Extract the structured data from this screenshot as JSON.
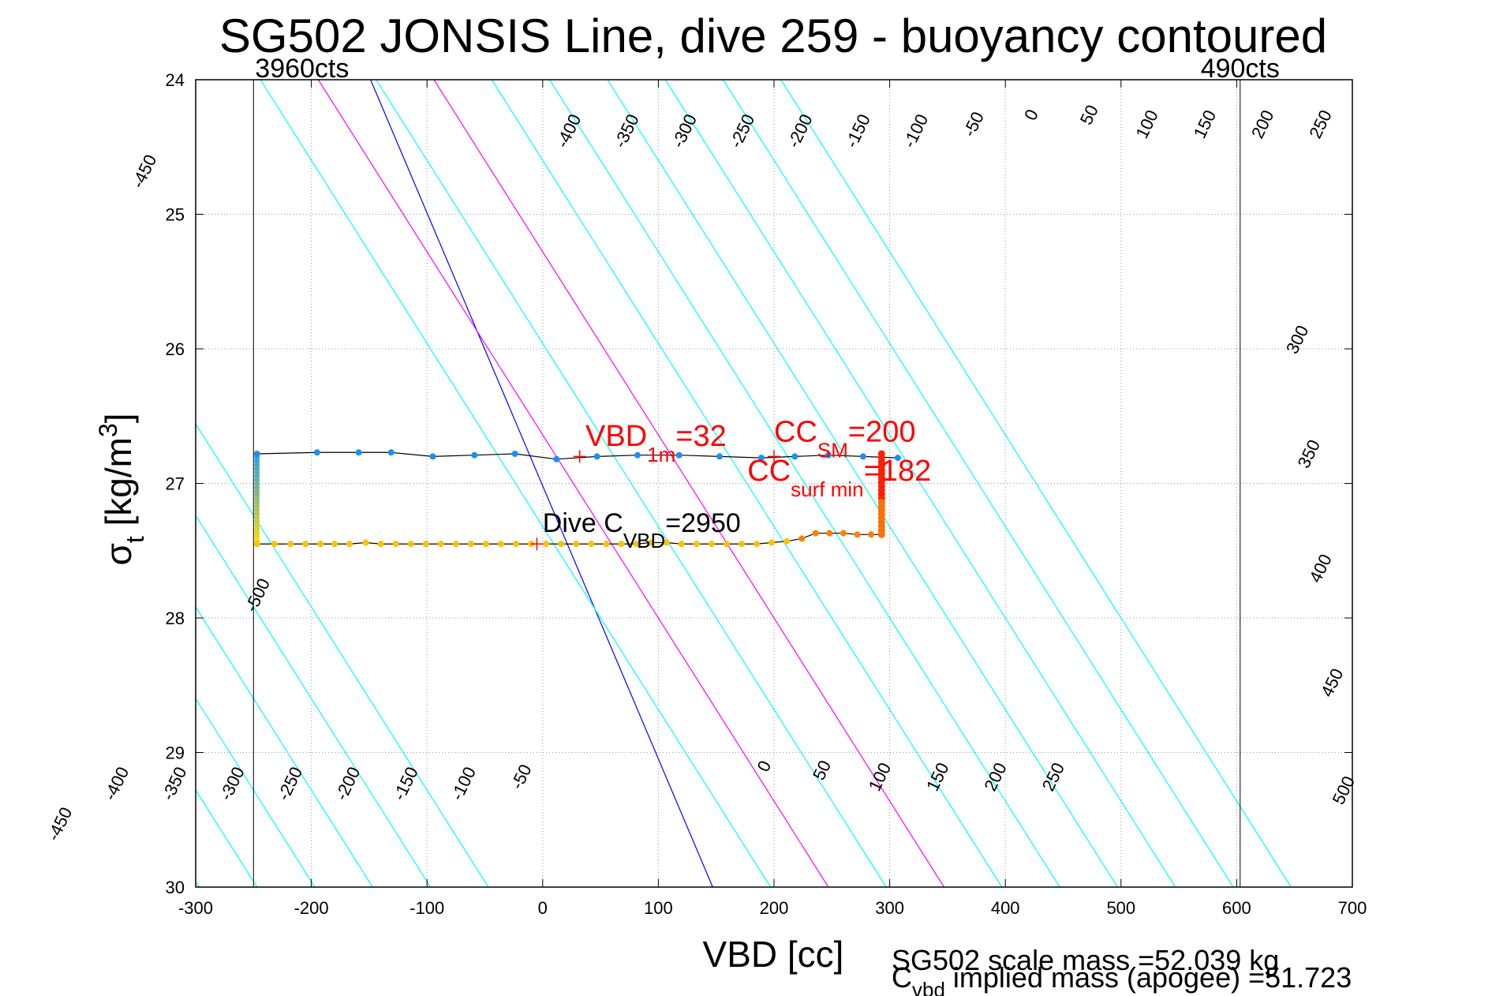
{
  "chart_data": {
    "type": "line",
    "title": "SG502 JONSIS Line, dive 259 - buoyancy contoured",
    "xlabel": "VBD [cc]",
    "ylabel": "σt [kg/m3]",
    "xlim": [
      -300,
      700
    ],
    "ylim": [
      24,
      30
    ],
    "y_reversed": true,
    "x_ticks": [
      -300,
      -200,
      -100,
      0,
      100,
      200,
      300,
      400,
      500,
      600,
      700
    ],
    "y_ticks": [
      24,
      25,
      26,
      27,
      28,
      29,
      30
    ],
    "grid": true,
    "vbd_limits": [
      {
        "label": "3960cts",
        "x": -250
      },
      {
        "label": "490cts",
        "x": 603
      }
    ],
    "buoyancy_contours": {
      "levels": [
        -500,
        -450,
        -400,
        -350,
        -300,
        -250,
        -200,
        -150,
        -100,
        -50,
        0,
        50,
        100,
        150,
        200,
        250,
        300,
        350,
        400,
        450,
        500
      ],
      "vbd_at_sigma30": [
        -497,
        -447,
        -397,
        -347,
        -297,
        -247,
        -197,
        -147,
        -97,
        -47,
        147,
        197,
        247,
        297,
        347,
        397,
        447,
        497,
        547,
        597,
        647
      ],
      "vbd_at_sigma24": [
        -497,
        -447,
        -397,
        -347,
        -297,
        -247,
        -197,
        -147,
        -97,
        -47,
        443,
        493,
        543,
        593,
        643,
        693,
        743,
        793,
        843,
        893,
        943
      ],
      "colors": {
        "zero": "#0000ff",
        "magenta_levels": [
          100,
          200
        ],
        "magenta": "#ff00ff",
        "default": "#00ffff"
      },
      "top_labels": [
        {
          "level": -450,
          "vbd": -340,
          "sigma": 24.7
        },
        {
          "level": -400,
          "vbd": 27,
          "sigma": 24.4
        },
        {
          "level": -350,
          "vbd": 77,
          "sigma": 24.4
        },
        {
          "level": -300,
          "vbd": 127,
          "sigma": 24.4
        },
        {
          "level": -250,
          "vbd": 177,
          "sigma": 24.4
        },
        {
          "level": -200,
          "vbd": 227,
          "sigma": 24.4
        },
        {
          "level": -150,
          "vbd": 277,
          "sigma": 24.4
        },
        {
          "level": -100,
          "vbd": 327,
          "sigma": 24.4
        },
        {
          "level": -50,
          "vbd": 377,
          "sigma": 24.35
        },
        {
          "level": 0,
          "vbd": 427,
          "sigma": 24.28
        },
        {
          "level": 50,
          "vbd": 477,
          "sigma": 24.28
        },
        {
          "level": 100,
          "vbd": 527,
          "sigma": 24.35
        },
        {
          "level": 150,
          "vbd": 577,
          "sigma": 24.35
        },
        {
          "level": 200,
          "vbd": 627,
          "sigma": 24.35
        },
        {
          "level": 250,
          "vbd": 677,
          "sigma": 24.35
        }
      ],
      "right_labels": [
        {
          "level": 300,
          "vbd": 657,
          "sigma": 25.95
        },
        {
          "level": 350,
          "vbd": 667,
          "sigma": 26.8
        },
        {
          "level": 400,
          "vbd": 677,
          "sigma": 27.65
        },
        {
          "level": 450,
          "vbd": 687,
          "sigma": 28.5
        },
        {
          "level": 500,
          "vbd": 697,
          "sigma": 29.3
        }
      ],
      "bottom_labels": [
        {
          "level": -500,
          "vbd": -242,
          "sigma": 27.85
        },
        {
          "level": -450,
          "vbd": -413,
          "sigma": 29.55
        },
        {
          "level": -400,
          "vbd": -364,
          "sigma": 29.25
        },
        {
          "level": -350,
          "vbd": -314,
          "sigma": 29.25
        },
        {
          "level": -300,
          "vbd": -264,
          "sigma": 29.25
        },
        {
          "level": -250,
          "vbd": -214,
          "sigma": 29.25
        },
        {
          "level": -200,
          "vbd": -164,
          "sigma": 29.25
        },
        {
          "level": -150,
          "vbd": -114,
          "sigma": 29.25
        },
        {
          "level": -100,
          "vbd": -64,
          "sigma": 29.25
        },
        {
          "level": -50,
          "vbd": -14,
          "sigma": 29.2
        },
        {
          "level": 0,
          "vbd": 196,
          "sigma": 29.12
        },
        {
          "level": 50,
          "vbd": 246,
          "sigma": 29.15
        },
        {
          "level": 100,
          "vbd": 296,
          "sigma": 29.2
        },
        {
          "level": 150,
          "vbd": 346,
          "sigma": 29.2
        },
        {
          "level": 200,
          "vbd": 396,
          "sigma": 29.2
        },
        {
          "level": 250,
          "vbd": 446,
          "sigma": 29.2
        }
      ]
    },
    "series": [
      {
        "name": "",
        "color": "#1e8ff0",
        "x": [
          -247,
          -195,
          -159,
          -131,
          -95,
          -59,
          -24,
          12,
          47,
          82,
          118,
          153,
          189,
          218,
          247,
          277,
          307
        ],
        "y": [
          26.78,
          26.77,
          26.77,
          26.77,
          26.8,
          26.79,
          26.78,
          26.82,
          26.8,
          26.79,
          26.79,
          26.8,
          26.81,
          26.8,
          26.79,
          26.8,
          26.81
        ]
      },
      {
        "name": "",
        "color": "#ffc000",
        "x": [
          -247,
          -232,
          -218,
          -205,
          -192,
          -180,
          -167,
          -153,
          -140,
          -127,
          -114,
          -101,
          -88,
          -75,
          -62,
          -49,
          -36,
          -23,
          -10,
          3,
          16,
          29,
          42,
          55,
          68,
          81,
          94,
          107,
          120,
          133,
          146,
          159,
          172,
          185,
          198,
          211
        ],
        "y": [
          27.45,
          27.45,
          27.45,
          27.45,
          27.45,
          27.45,
          27.45,
          27.44,
          27.45,
          27.45,
          27.45,
          27.45,
          27.45,
          27.45,
          27.45,
          27.45,
          27.45,
          27.45,
          27.45,
          27.45,
          27.45,
          27.45,
          27.45,
          27.45,
          27.45,
          27.45,
          27.44,
          27.44,
          27.45,
          27.45,
          27.45,
          27.45,
          27.45,
          27.45,
          27.44,
          27.43
        ]
      },
      {
        "name": "",
        "color": "#ff7f00",
        "x": [
          224,
          236,
          248,
          260,
          272,
          284,
          293
        ],
        "y": [
          27.41,
          27.37,
          27.37,
          27.37,
          27.38,
          27.38,
          27.38
        ]
      },
      {
        "name": "",
        "color": "#ff0000",
        "x": [
          293,
          293,
          293,
          293,
          293,
          293
        ],
        "y": [
          26.78,
          26.85,
          26.92,
          26.99,
          27.06,
          27.13
        ]
      }
    ],
    "markers": [
      {
        "label": "VBD_1m",
        "x": 32,
        "y": 26.8,
        "color": "#ff0000"
      },
      {
        "label": "CC_SM",
        "x": 200,
        "y": 26.8,
        "color": "#ff0000"
      },
      {
        "label": "dive",
        "x": -5,
        "y": 27.45,
        "color": "#ff0000"
      }
    ],
    "annotations": {
      "vbd_1m": {
        "main": "VBD",
        "sub": "1m",
        "val": "=32",
        "x": 37,
        "y": 26.72
      },
      "cc_sm": {
        "main": "CC",
        "sub": "SM",
        "val": "=200",
        "x": 200,
        "y": 26.69
      },
      "cc_surf": {
        "main": "CC",
        "sub": "surf min",
        "val": "=182",
        "x": 177,
        "y": 26.98
      },
      "dive_c": {
        "main": "Dive C",
        "sub": "VBD",
        "val": "=2950",
        "x": 0,
        "y": 27.36
      }
    },
    "footer": {
      "line1": "SG502 scale mass =52.039 kg",
      "line2_main": "C",
      "line2_sub": "vbd",
      "line2_rest": " implied mass (apogee) =51.723"
    }
  }
}
